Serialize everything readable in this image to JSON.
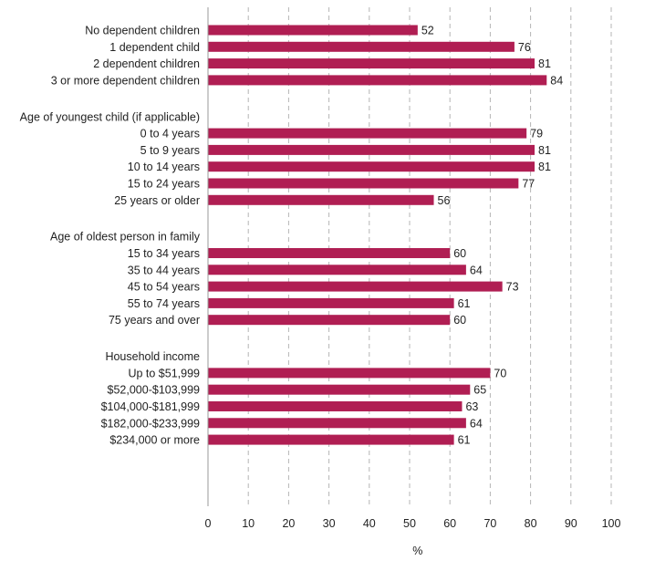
{
  "chart_data": {
    "type": "bar",
    "orientation": "horizontal",
    "xlabel": "%",
    "xlim": [
      0,
      108
    ],
    "xticks": [
      0,
      10,
      20,
      30,
      40,
      50,
      60,
      70,
      80,
      90,
      100
    ],
    "grid": "vertical-dashed",
    "bar_color": "#b01e53",
    "rows": [
      {
        "kind": "bar",
        "label": "No dependent children",
        "value": 52
      },
      {
        "kind": "bar",
        "label": "1 dependent child",
        "value": 76
      },
      {
        "kind": "bar",
        "label": "2 dependent children",
        "value": 81
      },
      {
        "kind": "bar",
        "label": "3 or more dependent children",
        "value": 84
      },
      {
        "kind": "gap"
      },
      {
        "kind": "header",
        "label": "Age of youngest child (if applicable)"
      },
      {
        "kind": "bar",
        "label": "0 to 4 years",
        "value": 79
      },
      {
        "kind": "bar",
        "label": "5 to 9 years",
        "value": 81
      },
      {
        "kind": "bar",
        "label": "10 to 14 years",
        "value": 81
      },
      {
        "kind": "bar",
        "label": "15 to 24 years",
        "value": 77
      },
      {
        "kind": "bar",
        "label": "25 years or older",
        "value": 56
      },
      {
        "kind": "gap"
      },
      {
        "kind": "header",
        "label": "Age of oldest person in family"
      },
      {
        "kind": "bar",
        "label": "15 to 34 years",
        "value": 60
      },
      {
        "kind": "bar",
        "label": "35 to 44 years",
        "value": 64
      },
      {
        "kind": "bar",
        "label": "45 to 54 years",
        "value": 73
      },
      {
        "kind": "bar",
        "label": "55 to 74 years",
        "value": 61
      },
      {
        "kind": "bar",
        "label": "75 years and over",
        "value": 60
      },
      {
        "kind": "gap"
      },
      {
        "kind": "header",
        "label": "Household income"
      },
      {
        "kind": "bar",
        "label": "Up to $51,999",
        "value": 70
      },
      {
        "kind": "bar",
        "label": "$52,000-$103,999",
        "value": 65
      },
      {
        "kind": "bar",
        "label": "$104,000-$181,999",
        "value": 63
      },
      {
        "kind": "bar",
        "label": "$182,000-$233,999",
        "value": 64
      },
      {
        "kind": "bar",
        "label": "$234,000 or more",
        "value": 61
      }
    ]
  }
}
